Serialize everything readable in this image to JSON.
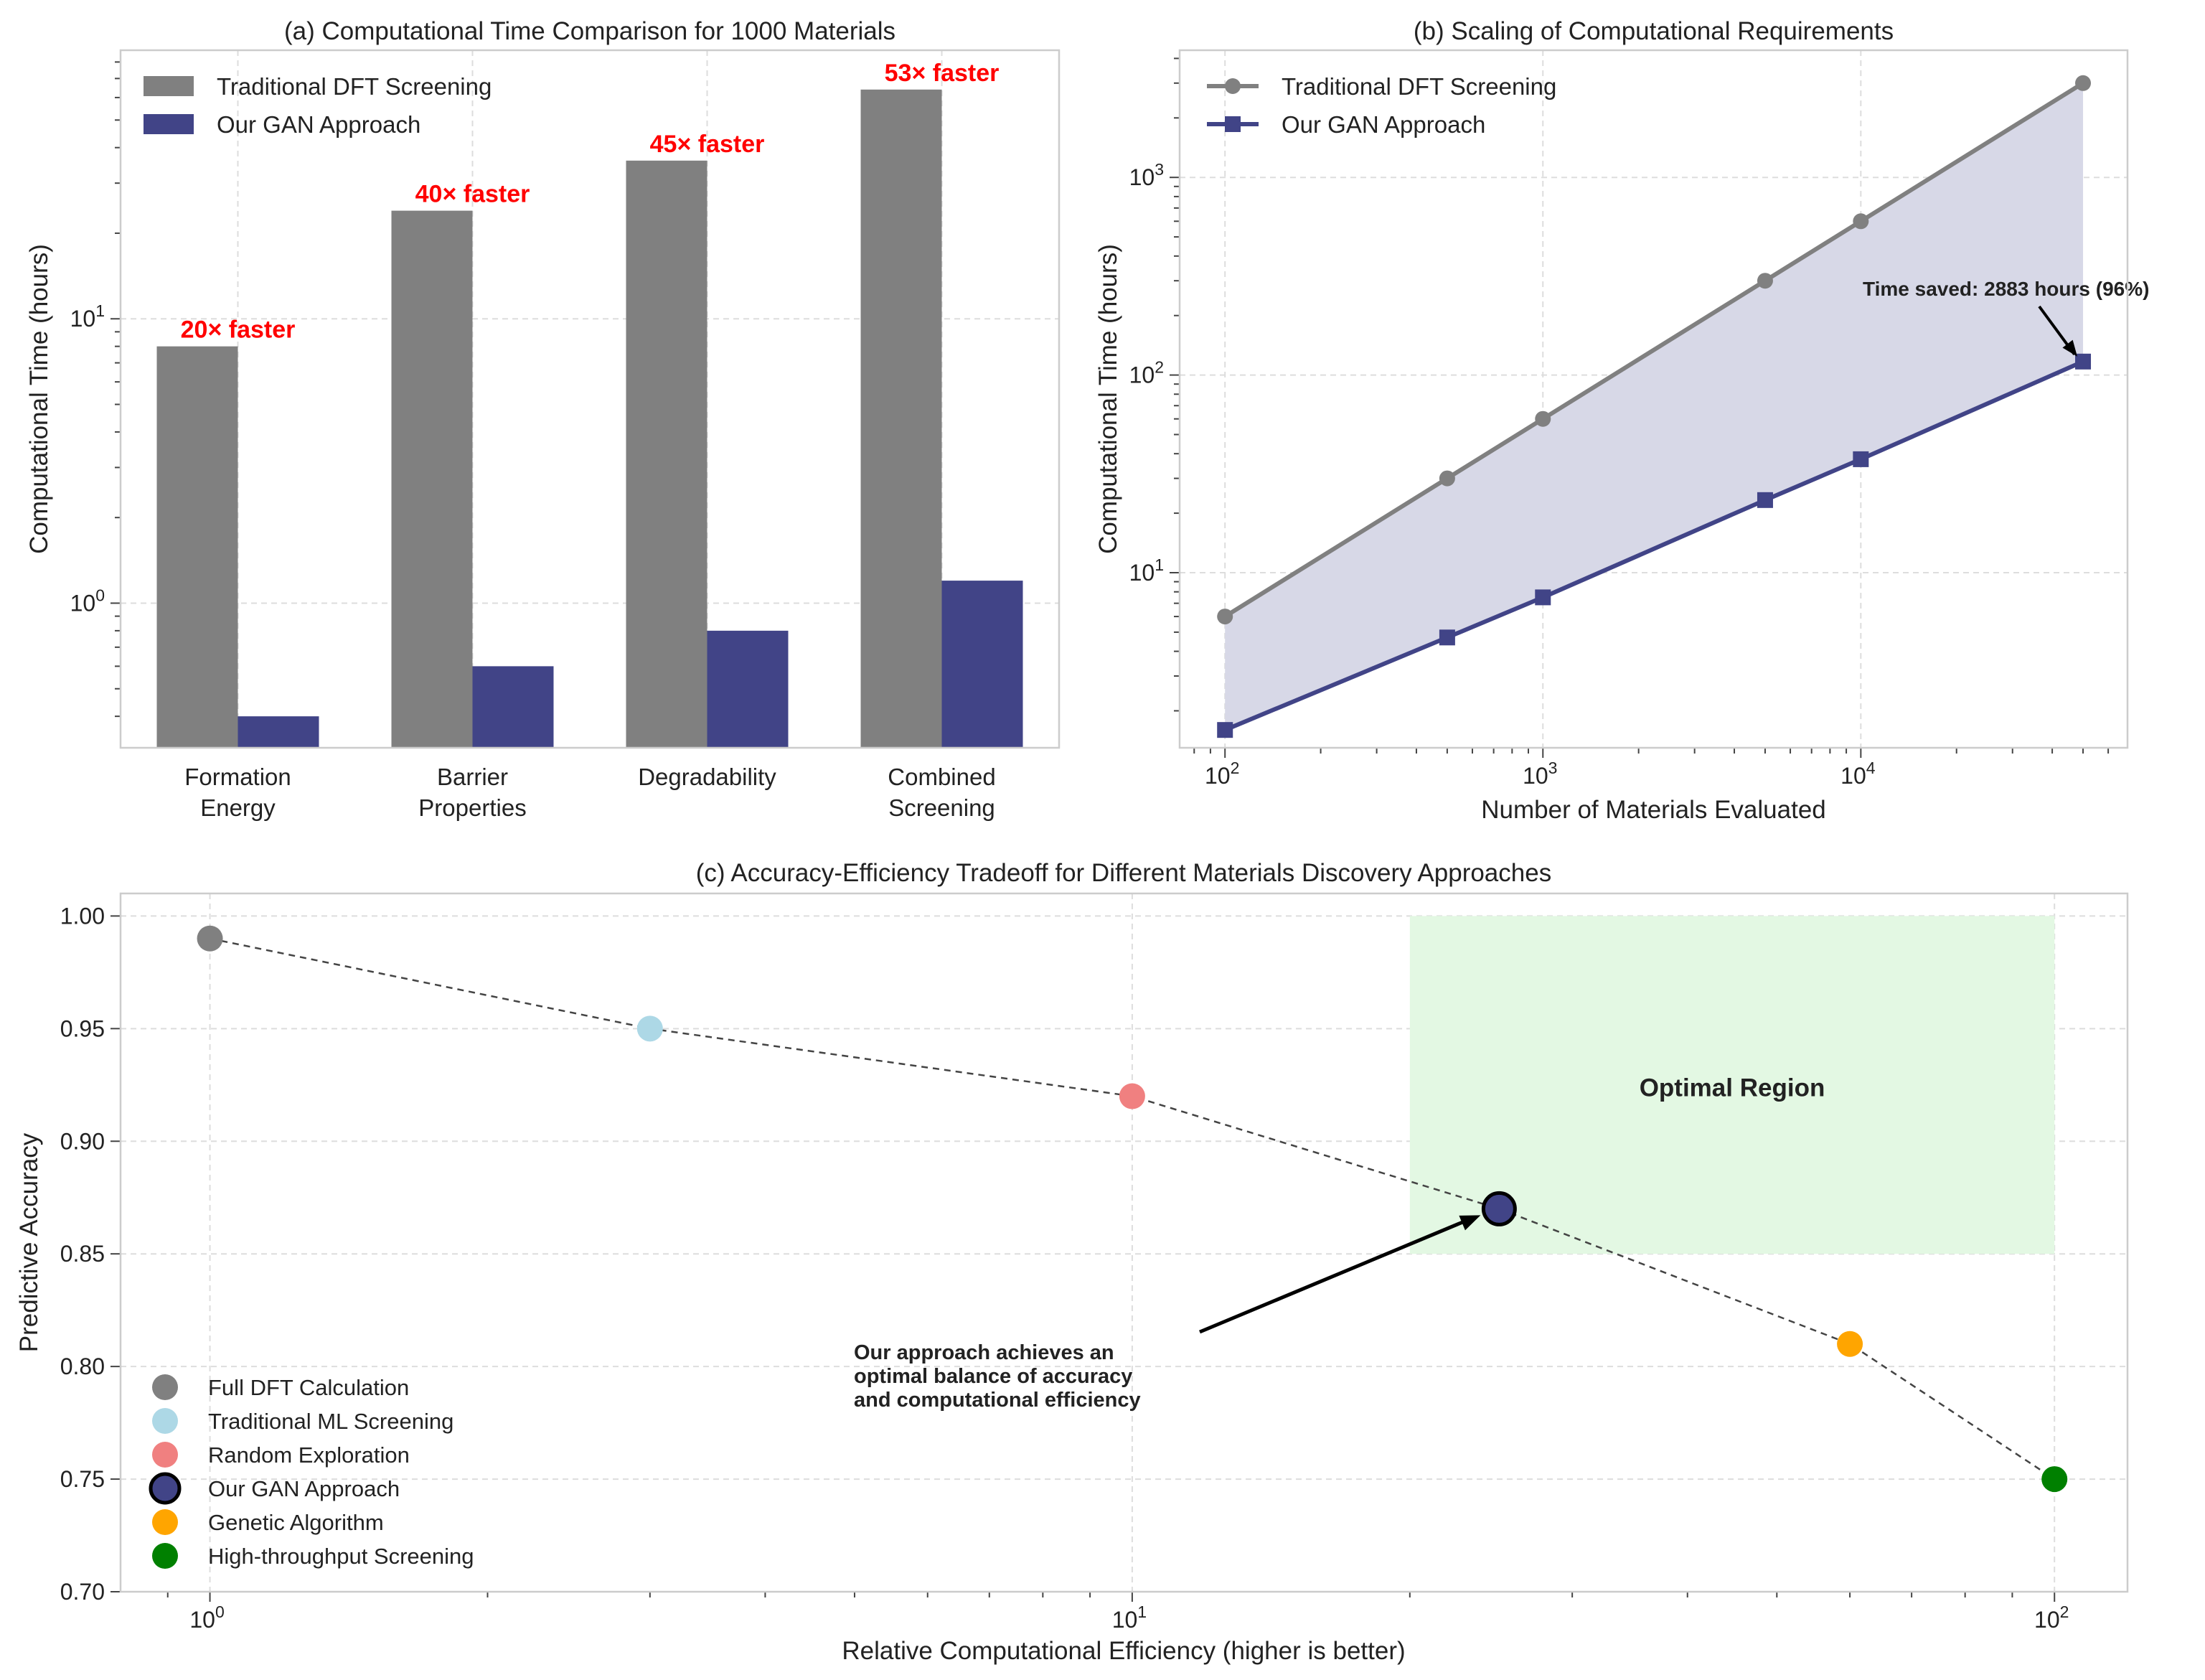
{
  "figure": {
    "background": "#ffffff"
  },
  "colors": {
    "dft": "#808080",
    "gan": "#414487",
    "annotation_red": "#ff0000",
    "fill_between": "#d7d8e7",
    "optimal_region": "#e3f8e3",
    "dashed_line": "#444444",
    "spine": "#cccccc",
    "grid": "#dddddd"
  },
  "chart_data": [
    {
      "id": "a",
      "type": "bar",
      "title": "(a) Computational Time Comparison for 1000 Materials",
      "xlabel": "",
      "ylabel": "Computational Time (hours)",
      "yscale": "log",
      "ylim": [
        0.31,
        88
      ],
      "yticks": [
        {
          "value": 1,
          "base": "10",
          "exp": "0"
        },
        {
          "value": 10,
          "base": "10",
          "exp": "1"
        }
      ],
      "grid": true,
      "legend": "top-left",
      "categories": [
        {
          "lines": [
            "Formation",
            "Energy"
          ]
        },
        {
          "lines": [
            "Barrier",
            "Properties"
          ]
        },
        {
          "lines": [
            "Degradability"
          ]
        },
        {
          "lines": [
            "Combined",
            "Screening"
          ]
        }
      ],
      "series": [
        {
          "name": "Traditional DFT Screening",
          "color": "#808080",
          "values": [
            8,
            24,
            36,
            64
          ]
        },
        {
          "name": "Our GAN Approach",
          "color": "#414487",
          "values": [
            0.4,
            0.6,
            0.8,
            1.2
          ]
        }
      ],
      "annotations": [
        "20× faster",
        "40× faster",
        "45× faster",
        "53× faster"
      ]
    },
    {
      "id": "b",
      "type": "line",
      "title": "(b) Scaling of Computational Requirements",
      "xlabel": "Number of Materials Evaluated",
      "ylabel": "Computational Time (hours)",
      "xscale": "log",
      "yscale": "log",
      "xlim": [
        72,
        69000
      ],
      "ylim": [
        1.3,
        4400
      ],
      "xticks": [
        {
          "value": 100,
          "base": "10",
          "exp": "2"
        },
        {
          "value": 1000,
          "base": "10",
          "exp": "3"
        },
        {
          "value": 10000,
          "base": "10",
          "exp": "4"
        }
      ],
      "yticks": [
        {
          "value": 10,
          "base": "10",
          "exp": "1"
        },
        {
          "value": 100,
          "base": "10",
          "exp": "2"
        },
        {
          "value": 1000,
          "base": "10",
          "exp": "3"
        }
      ],
      "grid": true,
      "legend": "top-left",
      "x": [
        100,
        500,
        1000,
        5000,
        10000,
        50000
      ],
      "series": [
        {
          "name": "Traditional DFT Screening",
          "color": "#808080",
          "marker": "circle",
          "values": [
            6,
            30,
            60,
            300,
            600,
            3000
          ]
        },
        {
          "name": "Our GAN Approach",
          "color": "#414487",
          "marker": "square",
          "values": [
            1.6,
            4.7,
            7.5,
            23.3,
            37.5,
            117
          ]
        }
      ],
      "fill_between": true,
      "annotation": {
        "text": "Time saved: 2883 hours (96%)",
        "x": 50000,
        "y": 117
      }
    },
    {
      "id": "c",
      "type": "scatter",
      "title": "(c) Accuracy-Efficiency Tradeoff for Different Materials Discovery Approaches",
      "xlabel": "Relative Computational Efficiency (higher is better)",
      "ylabel": "Predictive Accuracy",
      "xscale": "log",
      "xlim": [
        0.8,
        120
      ],
      "ylim": [
        0.7,
        1.01
      ],
      "xticks": [
        {
          "value": 1,
          "base": "10",
          "exp": "0"
        },
        {
          "value": 10,
          "base": "10",
          "exp": "1"
        },
        {
          "value": 100,
          "base": "10",
          "exp": "2"
        }
      ],
      "yticks": [
        "0.70",
        "0.75",
        "0.80",
        "0.85",
        "0.90",
        "0.95",
        "1.00"
      ],
      "grid": true,
      "legend": "bottom-left",
      "points": [
        {
          "name": "Full DFT Calculation",
          "x": 1,
          "y": 0.99,
          "color": "#808080",
          "highlight": false
        },
        {
          "name": "Traditional ML Screening",
          "x": 3,
          "y": 0.95,
          "color": "#add8e6",
          "highlight": false
        },
        {
          "name": "Random Exploration",
          "x": 10,
          "y": 0.92,
          "color": "#f08080",
          "highlight": false
        },
        {
          "name": "Our GAN Approach",
          "x": 25,
          "y": 0.87,
          "color": "#414487",
          "highlight": true
        },
        {
          "name": "Genetic Algorithm",
          "x": 60,
          "y": 0.81,
          "color": "#ffa500",
          "highlight": false
        },
        {
          "name": "High-throughput Screening",
          "x": 100,
          "y": 0.75,
          "color": "#008000",
          "highlight": false
        }
      ],
      "optimal_region": {
        "label": "Optimal Region",
        "x": [
          20,
          100
        ],
        "y": [
          0.85,
          1.0
        ]
      },
      "annotation": {
        "lines": [
          "Our approach achieves an",
          "optimal balance of accuracy",
          "and computational efficiency"
        ],
        "x": 25,
        "y": 0.87
      }
    }
  ]
}
